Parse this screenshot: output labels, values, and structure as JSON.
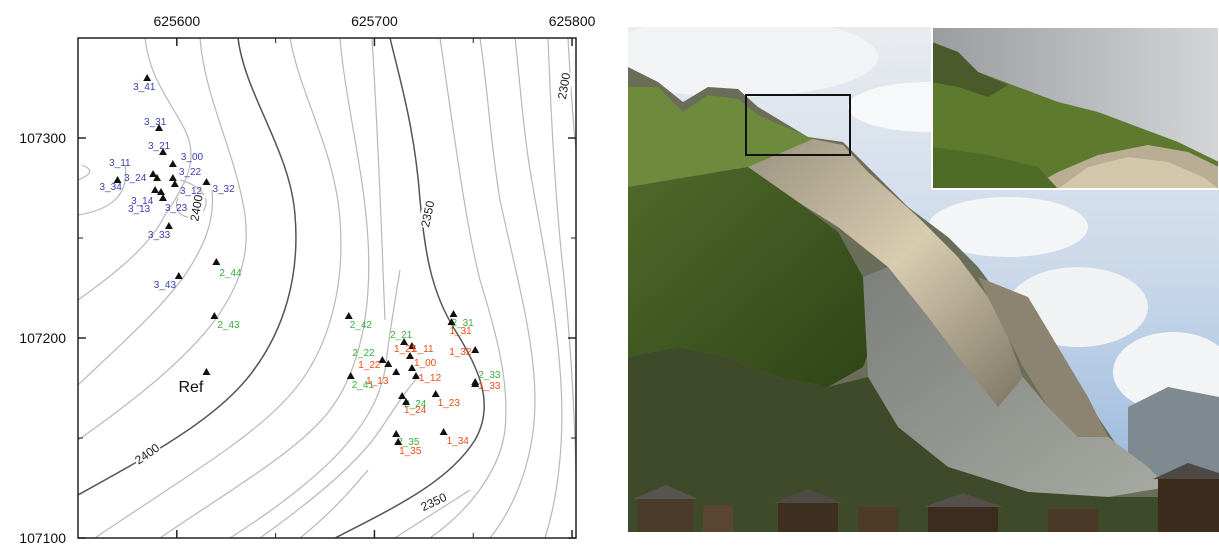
{
  "map": {
    "x_ticks": [
      {
        "value": 625600,
        "label": "625600"
      },
      {
        "value": 625700,
        "label": "625700"
      },
      {
        "value": 625800,
        "label": "625800"
      }
    ],
    "y_ticks": [
      {
        "value": 107300,
        "label": "107300"
      },
      {
        "value": 107200,
        "label": "107200"
      },
      {
        "value": 107100,
        "label": "107100"
      }
    ],
    "xlim": [
      625550,
      625802
    ],
    "ylim": [
      107100,
      107350
    ],
    "contour_labels": [
      {
        "text": "2400",
        "x": 625610,
        "y": 107265,
        "rot": -80
      },
      {
        "text": "2400",
        "x": 625585,
        "y": 107142,
        "rot": -35
      },
      {
        "text": "2350",
        "x": 625727,
        "y": 107262,
        "rot": -78
      },
      {
        "text": "2350",
        "x": 625730,
        "y": 107118,
        "rot": -25
      },
      {
        "text": "2300",
        "x": 625796,
        "y": 107326,
        "rot": -80
      }
    ],
    "reference": {
      "label": "Ref",
      "x": 625615,
      "y": 107183
    },
    "stations": [
      {
        "id": "3_41",
        "x": 625585,
        "y": 107330,
        "color": "blue",
        "lx": -14,
        "ly": 12
      },
      {
        "id": "3_31",
        "x": 625591,
        "y": 107305,
        "color": "blue",
        "lx": -15,
        "ly": -3
      },
      {
        "id": "3_21",
        "x": 625593,
        "y": 107293,
        "color": "blue",
        "lx": -15,
        "ly": -3
      },
      {
        "id": "3_00",
        "x": 625598,
        "y": 107287,
        "color": "blue",
        "lx": 8,
        "ly": -4
      },
      {
        "id": "3_11",
        "x": 625588,
        "y": 107282,
        "color": "blue",
        "lx": -44,
        "ly": -8
      },
      {
        "id": "3_22",
        "x": 625598,
        "y": 107280,
        "color": "blue",
        "lx": 6,
        "ly": -3
      },
      {
        "id": "3_24",
        "x": 625590,
        "y": 107280,
        "color": "blue",
        "lx": -33,
        "ly": 3
      },
      {
        "id": "3_34",
        "x": 625570,
        "y": 107279,
        "color": "blue",
        "lx": -18,
        "ly": 10
      },
      {
        "id": "3_12",
        "x": 625599,
        "y": 107277,
        "color": "blue",
        "lx": 5,
        "ly": 10
      },
      {
        "id": "3_32",
        "x": 625615,
        "y": 107278,
        "color": "blue",
        "lx": 6,
        "ly": 10
      },
      {
        "id": "3_14",
        "x": 625589,
        "y": 107274,
        "color": "blue",
        "lx": -24,
        "ly": 14
      },
      {
        "id": "3_13",
        "x": 625592,
        "y": 107273,
        "color": "blue",
        "lx": -33,
        "ly": 20
      },
      {
        "id": "3_23",
        "x": 625593,
        "y": 107270,
        "color": "blue",
        "lx": 2,
        "ly": 13
      },
      {
        "id": "3_33",
        "x": 625596,
        "y": 107256,
        "color": "blue",
        "lx": -21,
        "ly": 12
      },
      {
        "id": "3_43",
        "x": 625601,
        "y": 107231,
        "color": "blue",
        "lx": -25,
        "ly": 12
      },
      {
        "id": "2_44",
        "x": 625620,
        "y": 107238,
        "color": "green",
        "lx": 3,
        "ly": 14
      },
      {
        "id": "2_43",
        "x": 625619,
        "y": 107211,
        "color": "green",
        "lx": 3,
        "ly": 12
      },
      {
        "id": "2_42",
        "x": 625687,
        "y": 107211,
        "color": "green",
        "lx": 1,
        "ly": 12
      },
      {
        "id": "2_21",
        "x": 625715,
        "y": 107198,
        "color": "green",
        "lx": -14,
        "ly": -4
      },
      {
        "id": "1_21",
        "x": 625719,
        "y": 107196,
        "color": "red",
        "lx": -18,
        "ly": 6
      },
      {
        "id": "2_22",
        "x": 625704,
        "y": 107189,
        "color": "green",
        "lx": -30,
        "ly": -4
      },
      {
        "id": "1_22",
        "x": 625707,
        "y": 107187,
        "color": "red",
        "lx": -30,
        "ly": 4
      },
      {
        "id": "1_11",
        "x": 625718,
        "y": 107191,
        "color": "red",
        "lx": 2,
        "ly": -4
      },
      {
        "id": "2_41",
        "x": 625688,
        "y": 107181,
        "color": "green",
        "lx": 1,
        "ly": 12
      },
      {
        "id": "1_13",
        "x": 625711,
        "y": 107183,
        "color": "red",
        "lx": -30,
        "ly": 12
      },
      {
        "id": "1_00",
        "x": 625719,
        "y": 107185,
        "color": "red",
        "lx": 2,
        "ly": -2
      },
      {
        "id": "1_12",
        "x": 625721,
        "y": 107181,
        "color": "red",
        "lx": 3,
        "ly": 5
      },
      {
        "id": "2_31",
        "x": 625740,
        "y": 107212,
        "color": "green",
        "lx": -2,
        "ly": 12
      },
      {
        "id": "1_31",
        "x": 625739,
        "y": 107208,
        "color": "red",
        "lx": -2,
        "ly": 12
      },
      {
        "id": "1_32",
        "x": 625751,
        "y": 107194,
        "color": "red",
        "lx": -26,
        "ly": 5
      },
      {
        "id": "2_33",
        "x": 625751,
        "y": 107178,
        "color": "green",
        "lx": 3,
        "ly": -4
      },
      {
        "id": "1_33",
        "x": 625751,
        "y": 107177,
        "color": "red",
        "lx": 3,
        "ly": 5
      },
      {
        "id": "2_24",
        "x": 625714,
        "y": 107171,
        "color": "green",
        "lx": 2,
        "ly": 11
      },
      {
        "id": "1_24",
        "x": 625716,
        "y": 107168,
        "color": "red",
        "lx": -2,
        "ly": 11
      },
      {
        "id": "1_23",
        "x": 625731,
        "y": 107172,
        "color": "red",
        "lx": 2,
        "ly": 12
      },
      {
        "id": "2_35",
        "x": 625711,
        "y": 107152,
        "color": "green",
        "lx": 1,
        "ly": 11
      },
      {
        "id": "1_35",
        "x": 625712,
        "y": 107148,
        "color": "red",
        "lx": 1,
        "ly": 12
      },
      {
        "id": "1_34",
        "x": 625735,
        "y": 107153,
        "color": "red",
        "lx": 3,
        "ly": 12
      }
    ]
  },
  "colors": {
    "blue": "#3a3fb0",
    "green": "#3cae3c",
    "red": "#ee4a14",
    "contour": "#b5b5b5",
    "contour_major": "#555555"
  },
  "photo": {
    "subject": "rockslide-valley-photo",
    "inset": "detail-of-scarp-top"
  }
}
